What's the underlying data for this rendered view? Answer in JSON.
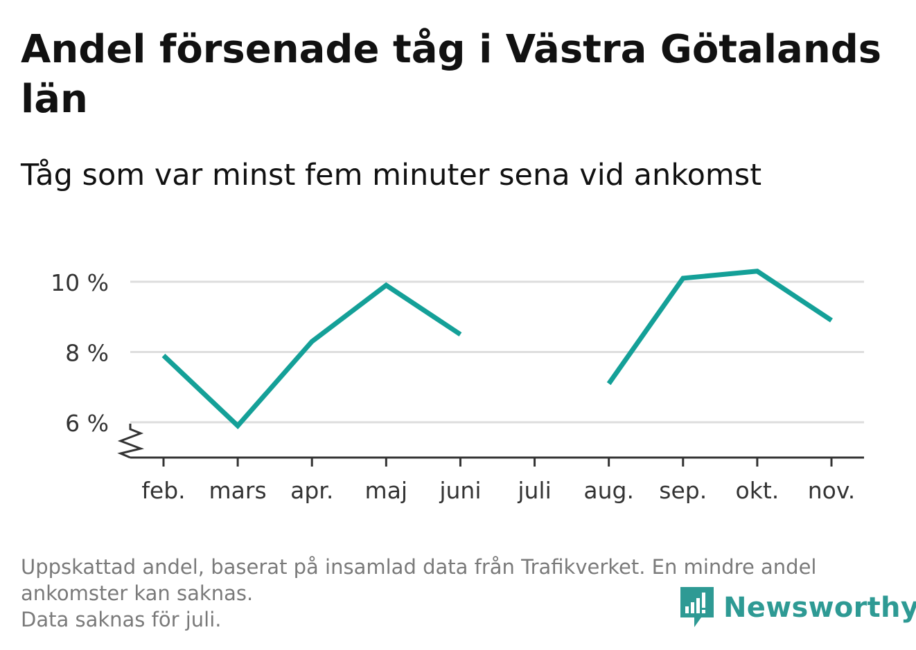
{
  "header": {
    "title": "Andel försenade tåg i Västra Götalands län",
    "subtitle": "Tåg som var minst fem minuter sena vid ankomst"
  },
  "chart_data": {
    "type": "line",
    "categories": [
      "feb.",
      "mars",
      "apr.",
      "maj",
      "juni",
      "juli",
      "aug.",
      "sep.",
      "okt.",
      "nov."
    ],
    "series": [
      {
        "values": [
          7.9,
          5.9,
          8.3,
          9.9,
          8.5,
          null,
          7.1,
          10.1,
          10.3,
          8.9
        ]
      }
    ],
    "y_ticks": [
      6,
      8,
      10
    ],
    "y_tick_labels": [
      "6 %",
      "8 %",
      "10 %"
    ],
    "ylim": [
      5,
      10.5
    ],
    "axis_break": true,
    "grid": true,
    "line_color": "#14a098",
    "grid_color": "#dddddd",
    "axis_color": "#333333"
  },
  "footnote": {
    "lines": [
      "Uppskattad andel, baserat på insamlad data från Trafikverket. En mindre andel",
      "ankomster kan saknas.",
      "Data saknas för juli."
    ]
  },
  "brand": {
    "name": "Newsworthy",
    "icon": "newsworthy-logo-icon",
    "color": "#2e9a94"
  }
}
